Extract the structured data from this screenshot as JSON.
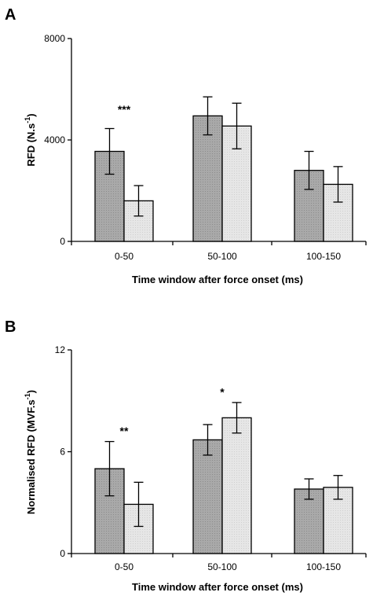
{
  "chart_data": [
    {
      "panel": "A",
      "type": "bar",
      "categories": [
        "0-50",
        "50-100",
        "100-150"
      ],
      "series": [
        {
          "values": [
            3550,
            4950,
            2800
          ],
          "errors": [
            900,
            750,
            750
          ],
          "color": "#a9a9a9"
        },
        {
          "values": [
            1600,
            4550,
            2250
          ],
          "errors": [
            600,
            900,
            700
          ],
          "color": "#e6e6e6"
        }
      ],
      "ylim": [
        0,
        8000
      ],
      "yticks": [
        "0",
        "4000",
        "8000"
      ],
      "ylabel_main": "RFD (N.s",
      "ylabel_sup": "-1",
      "ylabel_end": ")",
      "xlabel": "Time window after force onset (ms)",
      "annotations": [
        {
          "category_index": 0,
          "text": "***",
          "y": 5050
        }
      ]
    },
    {
      "panel": "B",
      "type": "bar",
      "categories": [
        "0-50",
        "50-100",
        "100-150"
      ],
      "series": [
        {
          "values": [
            5.0,
            6.7,
            3.8
          ],
          "errors": [
            1.6,
            0.9,
            0.6
          ],
          "color": "#a9a9a9"
        },
        {
          "values": [
            2.9,
            8.0,
            3.9
          ],
          "errors": [
            1.3,
            0.9,
            0.7
          ],
          "color": "#e6e6e6"
        }
      ],
      "ylim": [
        0,
        12
      ],
      "yticks": [
        "0",
        "6",
        "12"
      ],
      "ylabel_main": "Normalised RFD (MVF.s",
      "ylabel_sup": "-1",
      "ylabel_end": ")",
      "xlabel": "Time window after force onset (ms)",
      "annotations": [
        {
          "category_index": 0,
          "text": "**",
          "y": 7.0
        },
        {
          "category_index": 1,
          "text": "*",
          "y": 9.3
        }
      ]
    }
  ]
}
